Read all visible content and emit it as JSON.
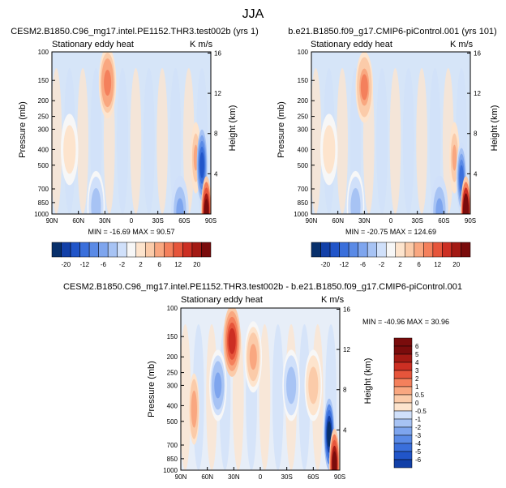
{
  "page_title": "JJA",
  "colors": {
    "blue_ramp": [
      "#08306b",
      "#1240a8",
      "#2155c9",
      "#3a6fdb",
      "#5a8ae6",
      "#7ea5ee",
      "#a7c3f4",
      "#d0e0fa"
    ],
    "white": "#f7f7f7",
    "red_ramp": [
      "#fde4cd",
      "#fbcba9",
      "#f9a780",
      "#f4805c",
      "#e6553b",
      "#cc2f23",
      "#a31a14",
      "#7a0c0c"
    ]
  },
  "chart_data": [
    {
      "type": "contour",
      "panel": "top-left",
      "title": "CESM2.B1850.C96_mg17.intel.PE1152.THR3.test002b (yrs 1)",
      "subtitle_left": "Stationary eddy heat",
      "subtitle_right": "K m/s",
      "ylabel": "Pressure (mb)",
      "ylabel_right": "Height (km)",
      "x_ticks": [
        "90N",
        "60N",
        "30N",
        "0",
        "30S",
        "60S",
        "90S"
      ],
      "y_ticks": [
        "100",
        "150",
        "200",
        "250",
        "300",
        "400",
        "500",
        "700",
        "850",
        "1000"
      ],
      "height_ticks": [
        "16",
        "12",
        "8",
        "4"
      ],
      "min_max": "MIN = -16.69   MAX =  90.57",
      "colorbar_levels": [
        "-20",
        "-12",
        "-6",
        "-2",
        "2",
        "6",
        "12",
        "20"
      ],
      "features": [
        {
          "lat": 27,
          "p": 155,
          "value": 9
        },
        {
          "lat": -73,
          "p": 450,
          "value": 6
        },
        {
          "lat": -80,
          "p": 500,
          "value": -14
        },
        {
          "lat": -85,
          "p": 970,
          "value": 20
        },
        {
          "lat": -55,
          "p": 960,
          "value": -6
        },
        {
          "lat": 40,
          "p": 900,
          "value": -4
        },
        {
          "lat": 70,
          "p": 400,
          "value": 2
        }
      ]
    },
    {
      "type": "contour",
      "panel": "top-right",
      "title": "b.e21.B1850.f09_g17.CMIP6-piControl.001 (yrs 101)",
      "subtitle_left": "Stationary eddy heat",
      "subtitle_right": "K m/s",
      "ylabel": "Pressure (mb)",
      "ylabel_right": "Height (km)",
      "x_ticks": [
        "90N",
        "60N",
        "30N",
        "0",
        "30S",
        "60S",
        "90S"
      ],
      "y_ticks": [
        "100",
        "150",
        "200",
        "250",
        "300",
        "400",
        "500",
        "700",
        "850",
        "1000"
      ],
      "height_ticks": [
        "16",
        "12",
        "8",
        "4"
      ],
      "min_max": "MIN = -20.75   MAX = 124.69",
      "colorbar_levels": [
        "-20",
        "-12",
        "-6",
        "-2",
        "2",
        "6",
        "12",
        "20"
      ],
      "features": [
        {
          "lat": 30,
          "p": 165,
          "value": 8
        },
        {
          "lat": -72,
          "p": 450,
          "value": 6
        },
        {
          "lat": -80,
          "p": 600,
          "value": -10
        },
        {
          "lat": -85,
          "p": 970,
          "value": 22
        },
        {
          "lat": -55,
          "p": 960,
          "value": -6
        },
        {
          "lat": 40,
          "p": 900,
          "value": -4
        },
        {
          "lat": 70,
          "p": 400,
          "value": 2
        }
      ]
    },
    {
      "type": "contour",
      "panel": "bottom-diff",
      "title": "CESM2.B1850.C96_mg17.intel.PE1152.THR3.test002b - b.e21.B1850.f09_g17.CMIP6-piControl.001",
      "subtitle_left": "Stationary eddy heat",
      "subtitle_right": "K m/s",
      "ylabel": "Pressure (mb)",
      "ylabel_right": "Height (km)",
      "x_ticks": [
        "90N",
        "60N",
        "30N",
        "0",
        "30S",
        "60S",
        "90S"
      ],
      "y_ticks": [
        "100",
        "150",
        "200",
        "250",
        "300",
        "400",
        "500",
        "700",
        "850",
        "1000"
      ],
      "height_ticks": [
        "16",
        "12",
        "8",
        "4"
      ],
      "min_max": "MIN = -40.96   MAX =  30.96",
      "colorbar_levels": [
        "6",
        "5",
        "4",
        "3",
        "2",
        "1",
        "0.5",
        "0",
        "-0.5",
        "-1",
        "-2",
        "-3",
        "-4",
        "-5",
        "-6"
      ],
      "features": [
        {
          "lat": 32,
          "p": 160,
          "value": 4
        },
        {
          "lat": 75,
          "p": 420,
          "value": 2
        },
        {
          "lat": 48,
          "p": 300,
          "value": -1.5
        },
        {
          "lat": 8,
          "p": 200,
          "value": 1.5
        },
        {
          "lat": -78,
          "p": 600,
          "value": -6
        },
        {
          "lat": -84,
          "p": 920,
          "value": 6
        },
        {
          "lat": -35,
          "p": 300,
          "value": -1
        },
        {
          "lat": -60,
          "p": 300,
          "value": 1
        }
      ]
    }
  ]
}
